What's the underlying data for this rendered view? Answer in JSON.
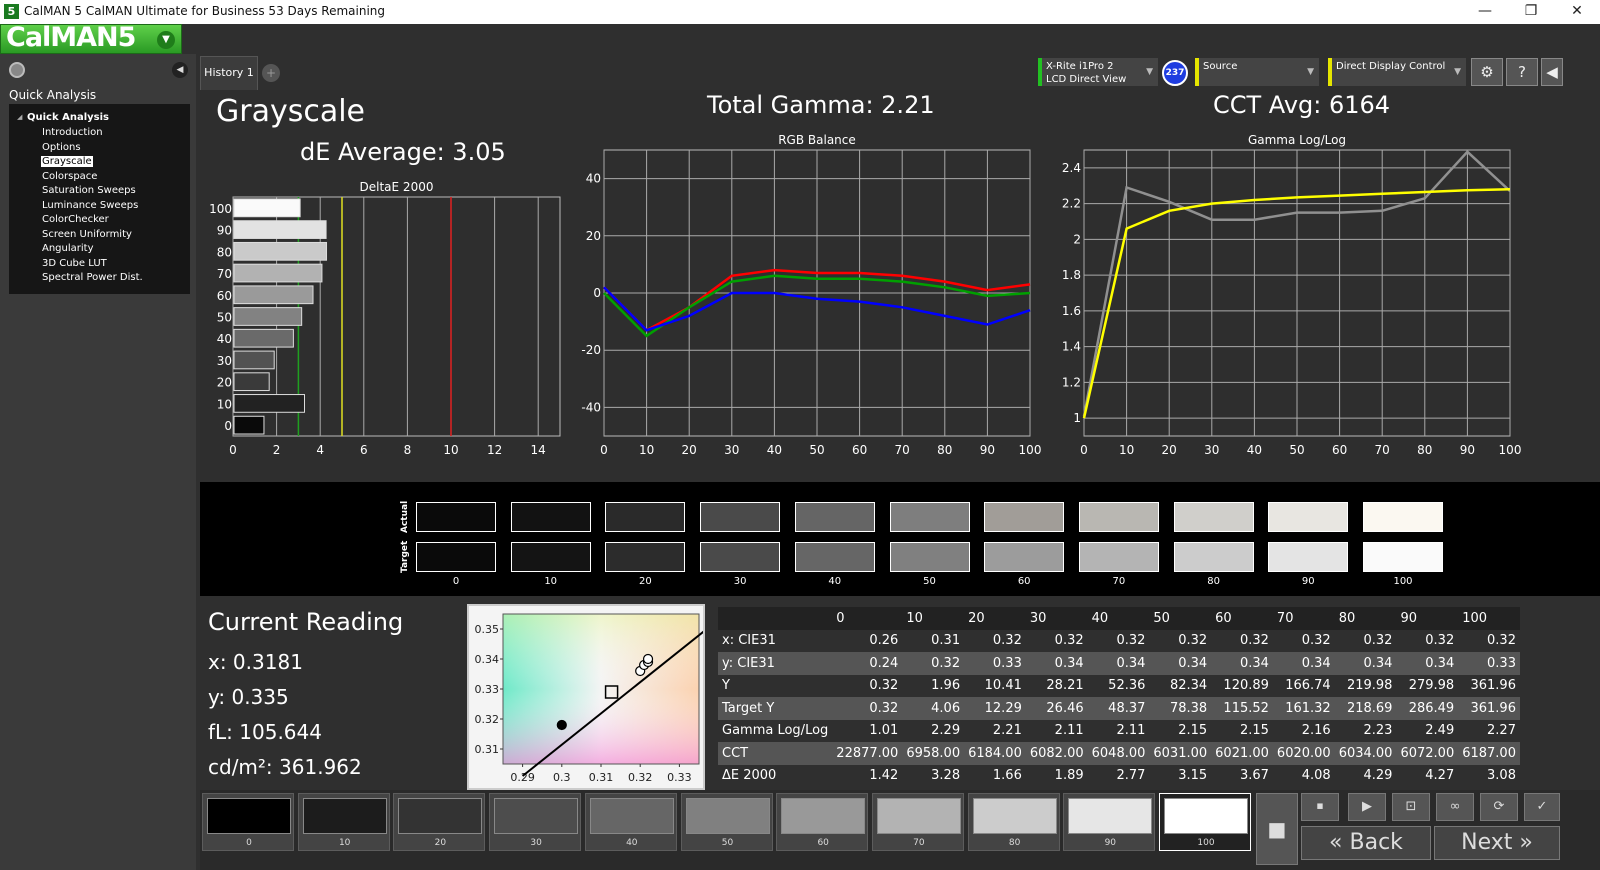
{
  "window": {
    "title": "CalMAN 5 CalMAN Ultimate for Business 53 Days Remaining",
    "icon_glyph": "5",
    "logo": "CalMAN5",
    "minimize": "—",
    "maximize": "❐",
    "close": "✕"
  },
  "left_panel": {
    "title": "Quick Analysis",
    "tree_root": "Quick Analysis",
    "items": [
      "Introduction",
      "Options",
      "Grayscale",
      "Colorspace",
      "Saturation Sweeps",
      "Luminance Sweeps",
      "ColorChecker",
      "Screen Uniformity",
      "Angularity",
      "3D Cube LUT",
      "Spectral Power Dist."
    ],
    "selected_index": 2
  },
  "tabs": {
    "history": "History 1",
    "add": "+"
  },
  "devices": {
    "meter_line1": "X-Rite i1Pro 2",
    "meter_line2": "LCD Direct View",
    "meter_color": "#22c022",
    "badge": "237",
    "source": "Source",
    "source_color": "#e6e600",
    "display": "Direct Display Control",
    "display_color": "#e6e600",
    "gear": "⚙",
    "help": "?",
    "collapse": "◀"
  },
  "header": {
    "page_title": "Grayscale",
    "de_average": "dE Average: 3.05",
    "total_gamma": "Total Gamma: 2.21",
    "cct_avg": "CCT Avg: 6164"
  },
  "chart_data": [
    {
      "type": "bar",
      "title": "DeltaE 2000",
      "orientation": "horizontal",
      "categories": [
        "100",
        "90",
        "80",
        "70",
        "60",
        "50",
        "40",
        "30",
        "20",
        "10",
        "0"
      ],
      "values": [
        3.08,
        4.27,
        4.29,
        4.08,
        3.67,
        3.15,
        2.77,
        1.89,
        1.66,
        3.28,
        1.42
      ],
      "xlim": [
        0,
        15
      ],
      "x_ticks": [
        0,
        2,
        4,
        6,
        8,
        10,
        12,
        14
      ],
      "threshold_lines": [
        {
          "value": 3,
          "color": "#20a020"
        },
        {
          "value": 5,
          "color": "#e0e020"
        },
        {
          "value": 10,
          "color": "#e02020"
        }
      ]
    },
    {
      "type": "line",
      "title": "RGB Balance",
      "x": [
        0,
        10,
        20,
        30,
        40,
        50,
        60,
        70,
        80,
        90,
        100
      ],
      "ylim": [
        -50,
        50
      ],
      "y_ticks": [
        40,
        20,
        0,
        -20,
        -40
      ],
      "series": [
        {
          "color": "#ff0000",
          "values": [
            2,
            -13,
            -5,
            6,
            8,
            7,
            7,
            6,
            4,
            1,
            3
          ]
        },
        {
          "color": "#00a000",
          "values": [
            0,
            -15,
            -5,
            4,
            6,
            5,
            5,
            4,
            2,
            -1,
            0
          ]
        },
        {
          "color": "#0000ff",
          "values": [
            2,
            -13,
            -8,
            0,
            0,
            -2,
            -3,
            -5,
            -8,
            -11,
            -6
          ]
        }
      ]
    },
    {
      "type": "line",
      "title": "Gamma Log/Log",
      "x": [
        0,
        10,
        20,
        30,
        40,
        50,
        60,
        70,
        80,
        90,
        100
      ],
      "ylim": [
        0.9,
        2.5
      ],
      "y_ticks": [
        2.4,
        2.2,
        2,
        1.8,
        1.6,
        1.4,
        1.2,
        1
      ],
      "series": [
        {
          "color": "#909090",
          "values": [
            1.01,
            2.29,
            2.21,
            2.11,
            2.11,
            2.15,
            2.15,
            2.16,
            2.23,
            2.49,
            2.27
          ]
        },
        {
          "color": "#ffff00",
          "values": [
            1.0,
            2.06,
            2.16,
            2.2,
            2.22,
            2.235,
            2.245,
            2.255,
            2.265,
            2.275,
            2.28
          ]
        }
      ]
    },
    {
      "type": "scatter",
      "title": "",
      "xlim": [
        0.285,
        0.335
      ],
      "ylim": [
        0.305,
        0.355
      ],
      "x_ticks": [
        0.29,
        0.3,
        0.31,
        0.32,
        0.33
      ],
      "y_ticks": [
        0.35,
        0.34,
        0.33,
        0.32,
        0.31
      ],
      "target": {
        "x": 0.3127,
        "y": 0.329
      },
      "points": [
        {
          "x": 0.32,
          "y": 0.336
        },
        {
          "x": 0.321,
          "y": 0.338
        },
        {
          "x": 0.322,
          "y": 0.339
        },
        {
          "x": 0.322,
          "y": 0.34
        },
        {
          "x": 0.3,
          "y": 0.318
        }
      ],
      "locus_line": [
        [
          0.29,
          0.301
        ],
        [
          0.337,
          0.35
        ]
      ]
    }
  ],
  "swatches": {
    "actual_label": "Actual",
    "target_label": "Target",
    "levels": [
      "0",
      "10",
      "20",
      "30",
      "40",
      "50",
      "60",
      "70",
      "80",
      "90",
      "100"
    ],
    "actual_colors": [
      "#0a0a0a",
      "#121212",
      "#2a2a2a",
      "#4a4a4a",
      "#656565",
      "#7e7e7e",
      "#a19d98",
      "#b9b7b2",
      "#d0cfcb",
      "#e8e6e1",
      "#fbf8f1"
    ],
    "target_colors": [
      "#0a0a0a",
      "#141414",
      "#2c2c2c",
      "#4a4a4a",
      "#666666",
      "#808080",
      "#9c9c9c",
      "#b4b4b4",
      "#cccccc",
      "#e4e4e4",
      "#fafafa"
    ]
  },
  "current_reading": {
    "title": "Current Reading",
    "x": "x: 0.3181",
    "y": "y: 0.335",
    "fl": "fL: 105.644",
    "cdm2": "cd/m²: 361.962"
  },
  "table": {
    "columns": [
      "0",
      "10",
      "20",
      "30",
      "40",
      "50",
      "60",
      "70",
      "80",
      "90",
      "100"
    ],
    "rows": [
      {
        "label": "x: CIE31",
        "values": [
          "0.26",
          "0.31",
          "0.32",
          "0.32",
          "0.32",
          "0.32",
          "0.32",
          "0.32",
          "0.32",
          "0.32",
          "0.32"
        ]
      },
      {
        "label": "y: CIE31",
        "values": [
          "0.24",
          "0.32",
          "0.33",
          "0.34",
          "0.34",
          "0.34",
          "0.34",
          "0.34",
          "0.34",
          "0.34",
          "0.33"
        ]
      },
      {
        "label": "Y",
        "values": [
          "0.32",
          "1.96",
          "10.41",
          "28.21",
          "52.36",
          "82.34",
          "120.89",
          "166.74",
          "219.98",
          "279.98",
          "361.96"
        ]
      },
      {
        "label": "Target Y",
        "values": [
          "0.32",
          "4.06",
          "12.29",
          "26.46",
          "48.37",
          "78.38",
          "115.52",
          "161.32",
          "218.69",
          "286.49",
          "361.96"
        ]
      },
      {
        "label": "Gamma Log/Log",
        "values": [
          "1.01",
          "2.29",
          "2.21",
          "2.11",
          "2.11",
          "2.15",
          "2.15",
          "2.16",
          "2.23",
          "2.49",
          "2.27"
        ]
      },
      {
        "label": "CCT",
        "values": [
          "22877.00",
          "6958.00",
          "6184.00",
          "6082.00",
          "6048.00",
          "6031.00",
          "6021.00",
          "6020.00",
          "6034.00",
          "6072.00",
          "6187.00"
        ]
      },
      {
        "label": "ΔE 2000",
        "values": [
          "1.42",
          "3.28",
          "1.66",
          "1.89",
          "2.77",
          "3.15",
          "3.67",
          "4.08",
          "4.29",
          "4.27",
          "3.08"
        ]
      }
    ]
  },
  "patches": {
    "labels": [
      "0",
      "10",
      "20",
      "30",
      "40",
      "50",
      "60",
      "70",
      "80",
      "90",
      "100"
    ],
    "colors": [
      "#000000",
      "#1c1c1c",
      "#333333",
      "#4d4d4d",
      "#666666",
      "#808080",
      "#999999",
      "#b3b3b3",
      "#cccccc",
      "#e6e6e6",
      "#ffffff"
    ],
    "selected_index": 10
  },
  "controls": {
    "stop": "⏹",
    "record": "■",
    "pause": "⏺",
    "play": "▶",
    "fit": "⊡",
    "loop": "∞",
    "refresh": "⟳",
    "check": "✓",
    "back": "Back",
    "next": "Next",
    "back_arrow": "«",
    "next_arrow": "»"
  }
}
